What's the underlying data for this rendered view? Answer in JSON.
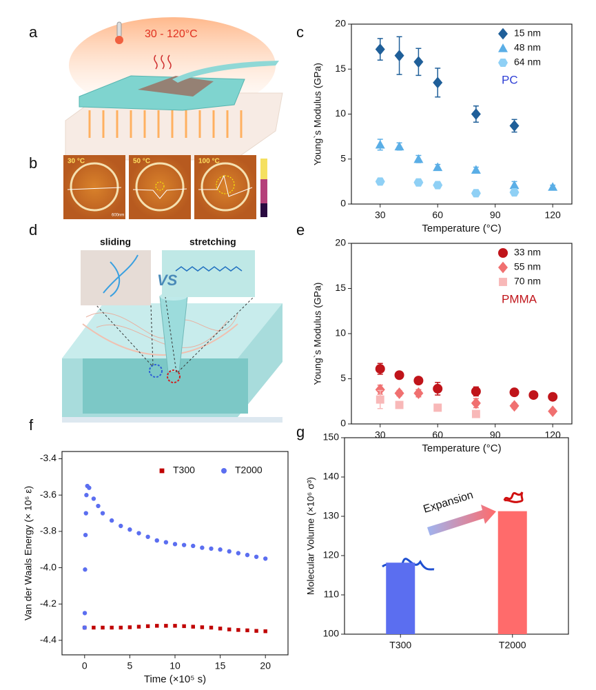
{
  "panel_labels": [
    "a",
    "b",
    "c",
    "d",
    "e",
    "f",
    "g"
  ],
  "illustrations": {
    "a_temperature": "30 - 120°C",
    "b_images": [
      "30 °C",
      "50 °C",
      "100 °C"
    ],
    "b_scale": "600nm",
    "d_left": "sliding",
    "d_right": "stretching",
    "d_vs": "VS"
  },
  "chart_data": [
    {
      "type": "scatter",
      "xlabel": "Temperature (°C)",
      "ylabel": "Young`s Modulus (GPa)",
      "xlim": [
        15,
        130
      ],
      "xticks": [
        30,
        60,
        90,
        120
      ],
      "ylim": [
        0,
        20
      ],
      "yticks": [
        0,
        5,
        10,
        15,
        20
      ],
      "legend": "upper right",
      "annotation": "PC",
      "annotation_color": "#2f3fd6",
      "series": [
        {
          "name": "15 nm",
          "color": "#1f5f99",
          "marker": "diamond",
          "x": [
            30,
            40,
            50,
            60,
            80,
            100
          ],
          "values": [
            17.2,
            16.5,
            15.8,
            13.5,
            10.0,
            8.7
          ],
          "errors": [
            1.2,
            2.1,
            1.5,
            1.6,
            0.9,
            0.7
          ]
        },
        {
          "name": "48 nm",
          "color": "#5aaee6",
          "marker": "triangle",
          "x": [
            30,
            40,
            50,
            60,
            80,
            100,
            120
          ],
          "values": [
            6.6,
            6.4,
            5.0,
            4.1,
            3.8,
            2.1,
            1.9
          ],
          "errors": [
            0.6,
            0.4,
            0.4,
            0.3,
            0.3,
            0.4,
            0.2
          ]
        },
        {
          "name": "64 nm",
          "color": "#8fd0f5",
          "marker": "hexagon",
          "x": [
            30,
            50,
            60,
            80,
            100
          ],
          "values": [
            2.5,
            2.4,
            2.1,
            1.2,
            1.3
          ]
        }
      ]
    },
    {
      "type": "scatter",
      "xlabel": "Temperature (°C)",
      "ylabel": "Young`s Modulus (GPa)",
      "xlim": [
        15,
        130
      ],
      "xticks": [
        30,
        60,
        90,
        120
      ],
      "ylim": [
        0,
        20
      ],
      "yticks": [
        0,
        5,
        10,
        15,
        20
      ],
      "legend": "upper right",
      "annotation": "PMMA",
      "annotation_color": "#c0141a",
      "series": [
        {
          "name": "33 nm",
          "color": "#c0141a",
          "marker": "circle",
          "x": [
            30,
            40,
            50,
            60,
            80,
            100,
            110,
            120
          ],
          "values": [
            6.1,
            5.4,
            4.8,
            3.9,
            3.6,
            3.5,
            3.2,
            3.0
          ],
          "errors": [
            0.6,
            0.3,
            0.3,
            0.7,
            0.5,
            0.3,
            0.2,
            0.3
          ]
        },
        {
          "name": "55 nm",
          "color": "#f07070",
          "marker": "diamond",
          "x": [
            30,
            40,
            50,
            80,
            100,
            120
          ],
          "values": [
            3.8,
            3.4,
            3.4,
            2.3,
            2.0,
            1.4
          ],
          "errors": [
            0.5,
            0.3,
            0.4,
            0.5,
            0.3,
            0.2
          ]
        },
        {
          "name": "70 nm",
          "color": "#f8b8b8",
          "marker": "square",
          "x": [
            30,
            40,
            60,
            80
          ],
          "values": [
            2.7,
            2.1,
            1.8,
            1.1
          ],
          "errors": [
            1.0,
            0.3,
            0.2,
            0.3
          ]
        }
      ]
    },
    {
      "type": "scatter",
      "xlabel": "Time (×10⁵ s)",
      "ylabel": "Van der Waals Energy (× 10⁶ ε)",
      "xlim": [
        -2.5,
        22.5
      ],
      "xticks": [
        0,
        5,
        10,
        15,
        20
      ],
      "ylim": [
        -4.48,
        -3.36
      ],
      "yticks": [
        -3.4,
        -3.6,
        -3.8,
        {
          "value": -4,
          "label": "-4.0"
        },
        -4.2,
        -4.4
      ],
      "legend": "upper right",
      "series": [
        {
          "name": "T300",
          "color": "#c00000",
          "marker": "square",
          "x": [
            0,
            1,
            2,
            3,
            4,
            5,
            6,
            7,
            8,
            9,
            10,
            11,
            12,
            13,
            14,
            15,
            16,
            17,
            18,
            19,
            20
          ],
          "values": [
            -4.33,
            -4.33,
            -4.33,
            -4.33,
            -4.33,
            -4.328,
            -4.325,
            -4.322,
            -4.32,
            -4.32,
            -4.32,
            -4.322,
            -4.325,
            -4.328,
            -4.33,
            -4.335,
            -4.34,
            -4.343,
            -4.345,
            -4.348,
            -4.35
          ]
        },
        {
          "name": "T2000",
          "color": "#5b6ef0",
          "marker": "circle",
          "x": [
            0,
            0.02,
            0.05,
            0.1,
            0.15,
            0.2,
            0.3,
            0.5,
            1,
            1.5,
            2,
            3,
            4,
            5,
            6,
            7,
            8,
            9,
            10,
            11,
            12,
            13,
            14,
            15,
            16,
            17,
            18,
            19,
            20
          ],
          "values": [
            -4.33,
            -4.25,
            -4.01,
            -3.82,
            -3.7,
            -3.6,
            -3.55,
            -3.56,
            -3.62,
            -3.66,
            -3.7,
            -3.74,
            -3.77,
            -3.79,
            -3.81,
            -3.83,
            -3.85,
            -3.86,
            -3.87,
            -3.875,
            -3.88,
            -3.89,
            -3.895,
            -3.9,
            -3.91,
            -3.92,
            -3.93,
            -3.94,
            -3.95
          ]
        }
      ]
    },
    {
      "type": "bar",
      "ylabel": "Molecular Volume (×10⁶ σ³)",
      "categories": [
        "T300",
        "T2000"
      ],
      "values": [
        118.2,
        131.3
      ],
      "colors": [
        "#5b6ef0",
        "#ff6b6b"
      ],
      "ylim": [
        100,
        150
      ],
      "yticks": [
        100,
        110,
        120,
        130,
        140,
        150
      ],
      "annotation": "Expansion"
    }
  ]
}
